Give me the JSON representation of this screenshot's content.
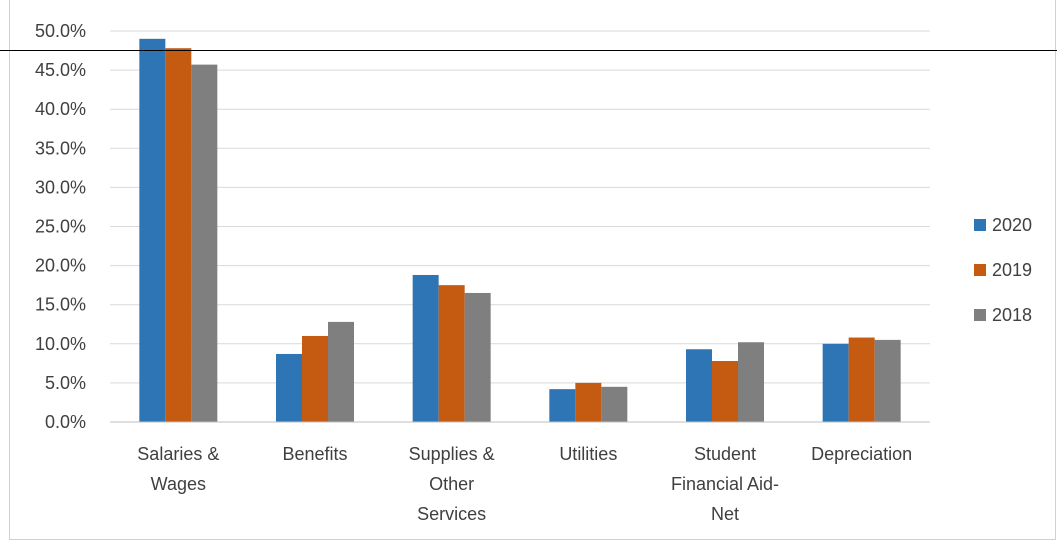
{
  "chart_data": {
    "type": "bar",
    "categories": [
      [
        "Salaries &",
        "Wages"
      ],
      [
        "Benefits"
      ],
      [
        "Supplies &",
        "Other",
        "Services"
      ],
      [
        "Utilities"
      ],
      [
        "Student",
        "Financial Aid-",
        "Net"
      ],
      [
        "Depreciation"
      ]
    ],
    "series": [
      {
        "name": "2020",
        "color": "#2e75b6",
        "values": [
          49.0,
          8.7,
          18.8,
          4.2,
          9.3,
          10.0
        ]
      },
      {
        "name": "2019",
        "color": "#c55a11",
        "values": [
          47.8,
          11.0,
          17.5,
          5.0,
          7.8,
          10.8
        ]
      },
      {
        "name": "2018",
        "color": "#7f7f7f",
        "values": [
          45.7,
          12.8,
          16.5,
          4.5,
          10.2,
          10.5
        ]
      }
    ],
    "ylim": [
      0,
      50
    ],
    "yticks": [
      "0.0%",
      "5.0%",
      "10.0%",
      "15.0%",
      "20.0%",
      "25.0%",
      "30.0%",
      "35.0%",
      "40.0%",
      "45.0%",
      "50.0%"
    ],
    "ytick_values": [
      0,
      5,
      10,
      15,
      20,
      25,
      30,
      35,
      40,
      45,
      50
    ],
    "grid": true,
    "legend_position": "right"
  }
}
